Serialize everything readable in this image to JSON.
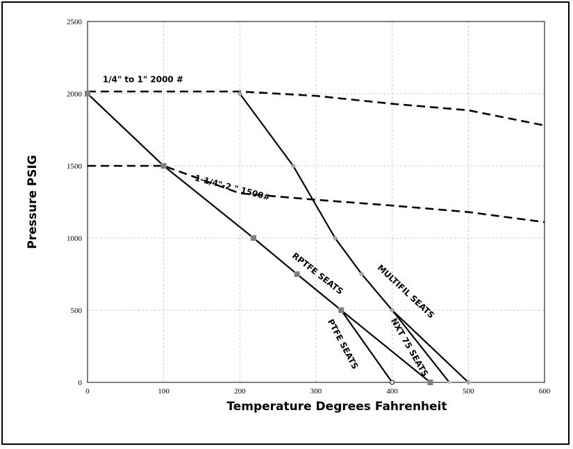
{
  "chart_data": {
    "type": "line",
    "xlabel": "Temperature Degrees  Fahrenheit",
    "ylabel": "Pressure PSIG",
    "xlim": [
      0,
      600
    ],
    "ylim": [
      0,
      2500
    ],
    "xticks": [
      0,
      100,
      200,
      300,
      400,
      500,
      600
    ],
    "yticks": [
      0,
      500,
      1000,
      1500,
      2000,
      2500
    ],
    "grid": "dashed light gray",
    "legend": "none (inline annotations)",
    "series": [
      {
        "name": "1/4\" to 1\" 2000 #",
        "style": "dashed",
        "color": "#000000",
        "marker": "none",
        "x": [
          0,
          200,
          300,
          400,
          500,
          600
        ],
        "y": [
          2015,
          2015,
          1985,
          1930,
          1885,
          1780
        ]
      },
      {
        "name": "1-1/4\"-2 \" 1500#",
        "style": "dashed",
        "color": "#000000",
        "marker": "none",
        "x": [
          0,
          100,
          200,
          300,
          400,
          500,
          600
        ],
        "y": [
          1500,
          1500,
          1310,
          1265,
          1225,
          1180,
          1110
        ]
      },
      {
        "name": "RPTFE SEATS",
        "style": "solid",
        "color": "#000000",
        "marker": "square",
        "x": [
          0,
          100,
          218,
          275,
          333,
          450
        ],
        "y": [
          2000,
          1500,
          1000,
          750,
          500,
          0
        ]
      },
      {
        "name": "PTFE SEATS",
        "style": "solid",
        "color": "#000000",
        "marker": "circle-open",
        "x": [
          333,
          400
        ],
        "y": [
          500,
          0
        ]
      },
      {
        "name": "MULTIFIL SEATS",
        "style": "solid",
        "color": "#000000",
        "marker": "diamond",
        "x": [
          200,
          270,
          325,
          360,
          400,
          500
        ],
        "y": [
          2000,
          1500,
          1000,
          750,
          500,
          0
        ]
      },
      {
        "name": "NXT 75 SEATS",
        "style": "solid",
        "color": "#000000",
        "marker": "diamond-small",
        "x": [
          400,
          475
        ],
        "y": [
          500,
          0
        ]
      }
    ],
    "annotations": [
      {
        "text": "1/4\" to 1\" 2000 #",
        "x": 20,
        "y": 2080,
        "rotate": 0
      },
      {
        "text": "1-1/4\"-2 \" 1500#",
        "x": 140,
        "y": 1400,
        "rotate": 15
      },
      {
        "text": "RPTFE SEATS",
        "x": 268,
        "y": 870,
        "rotate": 38
      },
      {
        "text": "PTFE SEATS",
        "x": 315,
        "y": 425,
        "rotate": 62
      },
      {
        "text": "MULTIFIL SEATS",
        "x": 380,
        "y": 790,
        "rotate": 43
      },
      {
        "text": "NXT 75 SEATS",
        "x": 398,
        "y": 430,
        "rotate": 60
      }
    ]
  }
}
